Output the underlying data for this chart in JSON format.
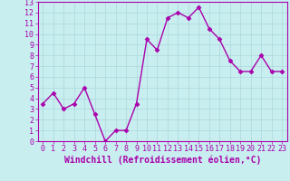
{
  "x": [
    0,
    1,
    2,
    3,
    4,
    5,
    6,
    7,
    8,
    9,
    10,
    11,
    12,
    13,
    14,
    15,
    16,
    17,
    18,
    19,
    20,
    21,
    22,
    23
  ],
  "y": [
    3.5,
    4.5,
    3.0,
    3.5,
    5.0,
    2.5,
    0.0,
    1.0,
    1.0,
    3.5,
    9.5,
    8.5,
    11.5,
    12.0,
    11.5,
    12.5,
    10.5,
    9.5,
    7.5,
    6.5,
    6.5,
    8.0,
    6.5,
    6.5
  ],
  "line_color": "#aa00aa",
  "marker": "D",
  "marker_size": 2.5,
  "bg_color": "#c8eef0",
  "grid_color": "#aad8dc",
  "xlabel": "Windchill (Refroidissement éolien,°C)",
  "xlabel_color": "#aa00aa",
  "ylim": [
    0,
    13
  ],
  "xlim": [
    -0.5,
    23.5
  ],
  "yticks": [
    0,
    1,
    2,
    3,
    4,
    5,
    6,
    7,
    8,
    9,
    10,
    11,
    12,
    13
  ],
  "xticks": [
    0,
    1,
    2,
    3,
    4,
    5,
    6,
    7,
    8,
    9,
    10,
    11,
    12,
    13,
    14,
    15,
    16,
    17,
    18,
    19,
    20,
    21,
    22,
    23
  ],
  "tick_label_color": "#aa00aa",
  "tick_label_fontsize": 6.0,
  "xlabel_fontsize": 7.0,
  "spine_color": "#aa00aa",
  "linewidth": 1.0
}
